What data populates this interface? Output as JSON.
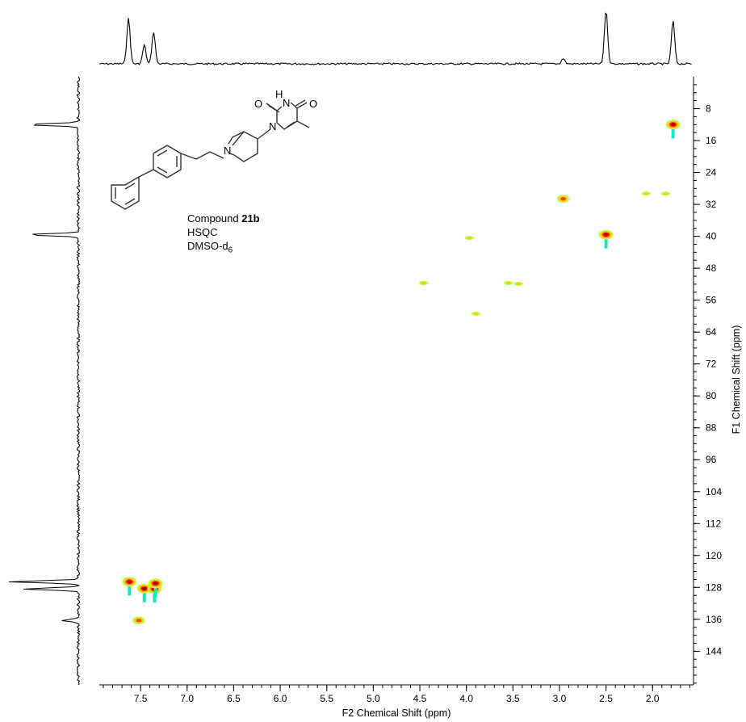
{
  "chart_data": {
    "type": "heatmap",
    "title": "",
    "xlabel": "F2 Chemical Shift (ppm)",
    "ylabel": "F1 Chemical Shift (ppm)",
    "xlim": [
      7.9,
      1.6
    ],
    "ylim": [
      0,
      152
    ],
    "x_reversed": true,
    "y_increases_downward": true,
    "x_ticks": [
      "7.5",
      "7.0",
      "6.5",
      "6.0",
      "5.5",
      "5.0",
      "4.5",
      "4.0",
      "3.5",
      "3.0",
      "2.5",
      "2.0"
    ],
    "y_ticks": [
      "8",
      "16",
      "24",
      "32",
      "40",
      "48",
      "56",
      "64",
      "72",
      "80",
      "88",
      "96",
      "104",
      "112",
      "120",
      "128",
      "136",
      "144"
    ],
    "cross_peaks": [
      {
        "x": 1.78,
        "y": 12.0,
        "intensity": "strong"
      },
      {
        "x": 2.5,
        "y": 39.6,
        "intensity": "strong"
      },
      {
        "x": 2.96,
        "y": 30.6,
        "intensity": "medium"
      },
      {
        "x": 2.07,
        "y": 29.3,
        "intensity": "weak"
      },
      {
        "x": 1.86,
        "y": 29.3,
        "intensity": "weak"
      },
      {
        "x": 3.97,
        "y": 40.4,
        "intensity": "weak"
      },
      {
        "x": 4.46,
        "y": 51.7,
        "intensity": "weak"
      },
      {
        "x": 3.55,
        "y": 51.7,
        "intensity": "weak"
      },
      {
        "x": 3.44,
        "y": 51.9,
        "intensity": "weak"
      },
      {
        "x": 3.9,
        "y": 59.4,
        "intensity": "weak"
      },
      {
        "x": 7.62,
        "y": 126.6,
        "intensity": "strong"
      },
      {
        "x": 7.46,
        "y": 128.3,
        "intensity": "strong"
      },
      {
        "x": 7.35,
        "y": 128.4,
        "intensity": "strong"
      },
      {
        "x": 7.34,
        "y": 127.0,
        "intensity": "strong"
      },
      {
        "x": 7.52,
        "y": 136.3,
        "intensity": "medium"
      }
    ],
    "f2_projection_peaks": [
      {
        "x": 7.63,
        "height": 0.85
      },
      {
        "x": 7.46,
        "height": 0.35
      },
      {
        "x": 7.36,
        "height": 0.6
      },
      {
        "x": 2.96,
        "height": 0.1
      },
      {
        "x": 2.5,
        "height": 1.0
      },
      {
        "x": 1.78,
        "height": 0.8
      }
    ],
    "f1_projection_peaks": [
      {
        "y": 12.0,
        "height": 0.75
      },
      {
        "y": 39.6,
        "height": 0.75
      },
      {
        "y": 126.6,
        "height": 1.0
      },
      {
        "y": 128.4,
        "height": 0.8
      },
      {
        "y": 136.3,
        "height": 0.25
      }
    ],
    "colors": {
      "strong_core": "#b00000",
      "mid": "#ff3b00",
      "warm": "#ffc800",
      "outer": "#b8ff4a",
      "negative": "#14e6c8"
    }
  },
  "annotation": {
    "compound_prefix": "Compound ",
    "compound_id": "21b",
    "experiment": "HSQC",
    "solvent_base": "DMSO-d",
    "solvent_subscript": "6"
  },
  "structure_labels": {
    "o_left": "O",
    "o_right": "O",
    "nh": "H",
    "n_top": "N",
    "n_bottom": "N",
    "n_pip": "N"
  }
}
